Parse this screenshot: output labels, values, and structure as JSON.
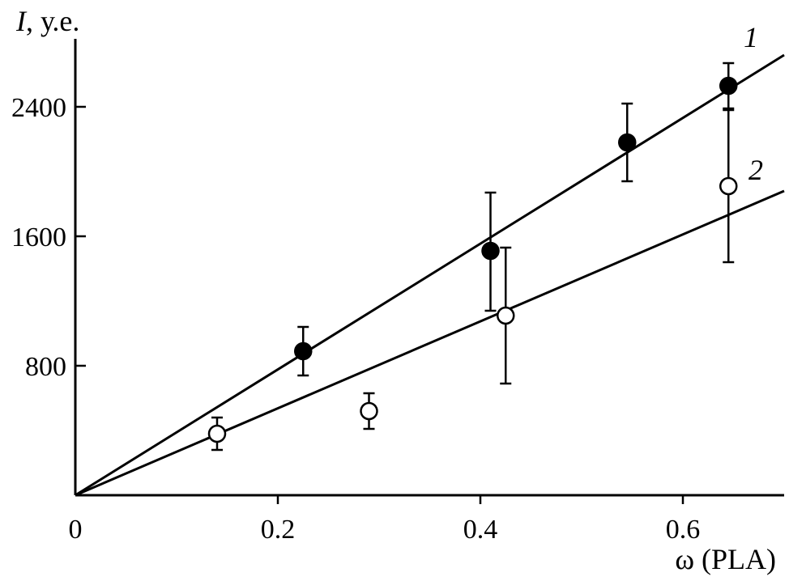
{
  "chart_data": {
    "type": "scatter",
    "ylabel_symbol": "I",
    "ylabel_unit": ", у.е.",
    "xlabel": "ω (PLA)",
    "xlim": [
      0,
      0.7
    ],
    "ylim": [
      0,
      2800
    ],
    "x_ticks": [
      0,
      0.2,
      0.4,
      0.6
    ],
    "x_tick_labels": [
      "0",
      "0.2",
      "0.4",
      "0.6"
    ],
    "y_ticks": [
      800,
      1600,
      2400
    ],
    "y_tick_labels": [
      "800",
      "1600",
      "2400"
    ],
    "grid": false,
    "series": [
      {
        "name": "1",
        "marker": "filled-circle",
        "points": [
          {
            "x": 0.225,
            "y": 890,
            "err_low": 740,
            "err_high": 1040
          },
          {
            "x": 0.41,
            "y": 1510,
            "err_low": 1140,
            "err_high": 1870
          },
          {
            "x": 0.545,
            "y": 2180,
            "err_low": 1940,
            "err_high": 2420
          },
          {
            "x": 0.645,
            "y": 2530,
            "err_low": 2390,
            "err_high": 2670
          }
        ],
        "fit": {
          "x": [
            0,
            0.7
          ],
          "y": [
            0,
            2720
          ]
        }
      },
      {
        "name": "2",
        "marker": "open-circle",
        "points": [
          {
            "x": 0.14,
            "y": 380,
            "err_low": 280,
            "err_high": 480
          },
          {
            "x": 0.29,
            "y": 520,
            "err_low": 410,
            "err_high": 630
          },
          {
            "x": 0.425,
            "y": 1110,
            "err_low": 690,
            "err_high": 1530
          },
          {
            "x": 0.645,
            "y": 1910,
            "err_low": 1440,
            "err_high": 2380
          }
        ],
        "fit": {
          "x": [
            0,
            0.7
          ],
          "y": [
            0,
            1880
          ]
        }
      }
    ],
    "colors": {
      "axis": "#000000",
      "line": "#000000",
      "open_fill": "#ffffff"
    }
  }
}
